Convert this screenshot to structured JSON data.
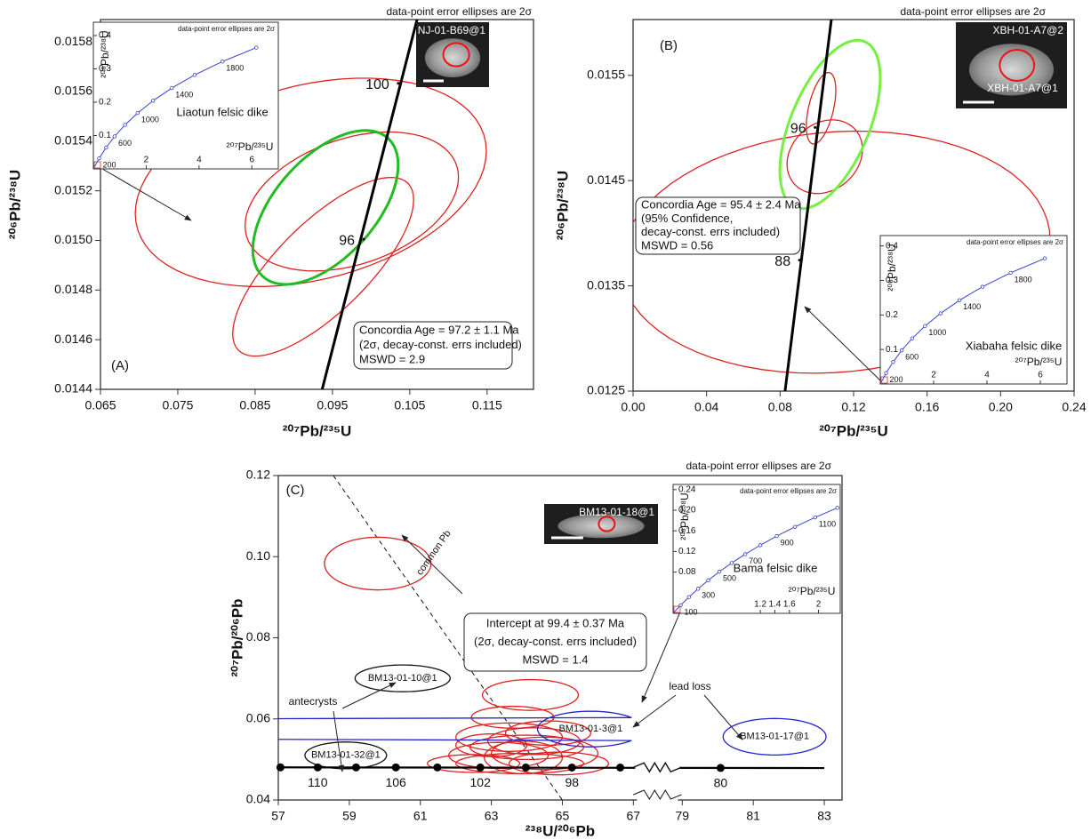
{
  "chart_data": [
    {
      "type": "concordia",
      "note": "data-point error ellipses are 2σ",
      "panel_label": "(A)",
      "x_label": "²⁰⁷Pb/²³⁵U",
      "y_label": "²⁰⁶Pb/²³⁸U",
      "xlim": [
        0.065,
        0.121
      ],
      "xticks": [
        0.065,
        0.075,
        0.085,
        0.095,
        0.105,
        0.115
      ],
      "ylim": [
        0.0144,
        0.01589
      ],
      "yticks": [
        0.0144,
        0.0146,
        0.0148,
        {
          "value": 0.015,
          "label": "0.0150"
        },
        0.0152,
        0.0154,
        0.0156,
        0.0158
      ],
      "concordia": {
        "color": "#000000",
        "x": [
          0.09367,
          0.10594
        ],
        "y": [
          0.0144,
          0.01589
        ]
      },
      "age_points": {
        "x": [
          0.1035,
          0.09904
        ],
        "y": [
          0.015633,
          0.015005
        ],
        "labels": [
          "100",
          "96"
        ]
      },
      "ellipses": [
        {
          "x": 0.0922,
          "y": 0.015234,
          "x_err": 0.0227,
          "y_err": 0.00042,
          "rho": 0.3,
          "color": "#dd2222"
        },
        {
          "x": 0.0975,
          "y": 0.015157,
          "x_err": 0.0138,
          "y_err": 0.00028,
          "rho": 0.35,
          "color": "#dd2222"
        },
        {
          "x": 0.0938,
          "y": 0.014894,
          "x_err": 0.0117,
          "y_err": 0.00036,
          "rho": 0.75,
          "color": "#dd2222"
        },
        {
          "x": 0.0941,
          "y": 0.015133,
          "x_err": 0.0094,
          "y_err": 0.00031,
          "rho": 0.55,
          "color": "#22bb22"
        }
      ],
      "result": [
        "Concordia Age = 97.2 ± 1.1 Ma",
        "(2σ, decay-const. errs included)",
        "MSWD  = 2.9"
      ],
      "images": [
        {
          "label": "NJ-01-B69@1"
        }
      ],
      "inset": {
        "note": "data-point error ellipses are 2σ",
        "label": "Liaotun felsic dike",
        "x_label": "²⁰⁷Pb/²³⁵U",
        "y_label": "²⁰⁶Pb/²³⁸U",
        "xlim": [
          0,
          7
        ],
        "ylim": [
          0,
          0.44
        ],
        "xticks": [
          2,
          4,
          6
        ],
        "yticks": [
          0.1,
          0.2,
          0.3,
          0.4
        ],
        "curve": {
          "color": "#3344cc",
          "x": [
            0.2177,
            0.4828,
            0.8056,
            1.1987,
            1.6775,
            2.2604,
            2.97,
            3.835,
            4.887,
            6.169
          ],
          "y": [
            0.03151,
            0.064,
            0.09754,
            0.1321,
            0.1678,
            0.2046,
            0.2426,
            0.2817,
            0.3221,
            0.3638
          ],
          "labels": [
            "200",
            null,
            "600",
            null,
            "1000",
            null,
            "1400",
            null,
            "1800",
            null
          ]
        }
      }
    },
    {
      "type": "concordia",
      "note": "data-point error ellipses are 2σ",
      "panel_label": "(B)",
      "x_label": "²⁰⁷Pb/²³⁵U",
      "y_label": "²⁰⁶Pb/²³⁸U",
      "xlim": [
        0,
        0.24
      ],
      "xticks": [
        {
          "value": 0,
          "label": "0.00"
        },
        0.04,
        0.08,
        0.12,
        0.16,
        {
          "value": 0.2,
          "label": "0.20"
        },
        0.24
      ],
      "ylim": [
        0.0125,
        0.01603
      ],
      "yticks": [
        0.0125,
        0.0135,
        0.0145,
        0.0155
      ],
      "concordia": {
        "color": "#000000",
        "x": [
          0.0827,
          0.1079
        ],
        "y": [
          0.0125,
          0.01603
        ]
      },
      "age_points": {
        "x": [
          0.09904,
          0.09053
        ],
        "y": [
          0.015005,
          0.013745
        ],
        "labels": [
          "96",
          "88"
        ]
      },
      "ellipses": [
        {
          "x": 0.11,
          "y": 0.01382,
          "x_err": 0.117,
          "y_err": 0.00115,
          "rho": 0.1,
          "color": "#dd2222"
        },
        {
          "x": 0.1023,
          "y": 0.015187,
          "x_err": 0.008,
          "y_err": 0.00034,
          "rho": 0.5,
          "color": "#dd2222"
        },
        {
          "x": 0.1043,
          "y": 0.014727,
          "x_err": 0.0205,
          "y_err": 0.00035,
          "rho": 0.2,
          "color": "#dd2222"
        },
        {
          "x": 0.1072,
          "y": 0.015034,
          "x_err": 0.0273,
          "y_err": 0.0008,
          "rho": 0.55,
          "color": "#77ee44"
        }
      ],
      "result": [
        "Concordia Age = 95.4 ± 2.4 Ma",
        " (95% Confidence,",
        "decay-const. errs included)",
        "MSWD = 0.56"
      ],
      "images": [
        {
          "label": "XBH-01-A7@2"
        },
        {
          "label": "XBH-01-A7@1"
        }
      ],
      "inset": {
        "note": "data-point error ellipses are 2σ",
        "label": "Xiabaha felsic dike",
        "x_label": "²⁰⁷Pb/²³⁵U",
        "y_label": "²⁰⁶Pb/²³⁸U",
        "xlim": [
          0,
          7
        ],
        "ylim": [
          0,
          0.43
        ],
        "xticks": [
          2,
          4,
          6
        ],
        "yticks": [
          0.1,
          0.2,
          0.3,
          0.4
        ],
        "curve": {
          "color": "#3344cc",
          "x": [
            0.2177,
            0.4828,
            0.8056,
            1.1987,
            1.6775,
            2.2604,
            2.97,
            3.835,
            4.887,
            6.169
          ],
          "y": [
            0.03151,
            0.064,
            0.09754,
            0.1321,
            0.1678,
            0.2046,
            0.2426,
            0.2817,
            0.3221,
            0.3638
          ],
          "labels": [
            "200",
            null,
            "600",
            null,
            "1000",
            null,
            "1400",
            null,
            "1800",
            null
          ]
        }
      }
    },
    {
      "type": "tera-wasserburg",
      "note": "data-point error ellipses are 2σ",
      "panel_label": "(C)",
      "x_label": "²³⁸U/²⁰⁶Pb",
      "y_label": "²⁰⁷Pb/²⁰⁶Pb",
      "xlim": [
        57,
        83.5
      ],
      "xbreak": [
        67,
        79
      ],
      "xticks": [
        57,
        59,
        61,
        63,
        65,
        67,
        79,
        81,
        83
      ],
      "ylim": [
        0.04,
        0.12
      ],
      "yticks": [
        0.04,
        0.06,
        0.08,
        {
          "value": 0.1,
          "label": "0.10"
        },
        0.12
      ],
      "concordia": {
        "color": "#000000",
        "x": [
          57,
          83
        ],
        "y": [
          0.04805,
          0.04788
        ]
      },
      "age_points": {
        "x": [
          57.06,
          58.11,
          59.19,
          60.31,
          61.48,
          62.69,
          63.97,
          65.27,
          66.63,
          80.08
        ],
        "y": [
          0.04805,
          0.04804,
          0.04804,
          0.04803,
          0.04803,
          0.04802,
          0.04802,
          0.04801,
          0.048,
          0.04791
        ],
        "labels": [
          null,
          "110",
          null,
          "106",
          null,
          "102",
          null,
          "98",
          null,
          "80"
        ]
      },
      "reference_line": {
        "label": "common Pb",
        "x": [
          58.55,
          65.0
        ],
        "y": [
          0.12,
          0.04
        ]
      },
      "ellipses": [
        {
          "x": 59.8,
          "y": 0.0983,
          "x_err": 1.5,
          "y_err": 0.0065,
          "rho": 0,
          "color": "#dd2222"
        },
        {
          "x": 64.1,
          "y": 0.0659,
          "x_err": 1.35,
          "y_err": 0.0038,
          "rho": 0,
          "color": "#dd2222"
        },
        {
          "x": 63.6,
          "y": 0.0604,
          "x_err": 1.16,
          "y_err": 0.0027,
          "rho": 0,
          "color": "#dd2222"
        },
        {
          "x": 63.5,
          "y": 0.0555,
          "x_err": 1.5,
          "y_err": 0.0035,
          "rho": 0,
          "color": "#dd2222"
        },
        {
          "x": 64.0,
          "y": 0.053,
          "x_err": 1.6,
          "y_err": 0.003,
          "rho": 0,
          "color": "#dd2222"
        },
        {
          "x": 63.2,
          "y": 0.051,
          "x_err": 1.4,
          "y_err": 0.0032,
          "rho": 0,
          "color": "#dd2222"
        },
        {
          "x": 64.5,
          "y": 0.0515,
          "x_err": 1.5,
          "y_err": 0.004,
          "rho": 0,
          "color": "#dd2222"
        },
        {
          "x": 63.8,
          "y": 0.049,
          "x_err": 1.8,
          "y_err": 0.0025,
          "rho": 0,
          "color": "#dd2222"
        },
        {
          "x": 64.9,
          "y": 0.049,
          "x_err": 1.4,
          "y_err": 0.0028,
          "rho": 0,
          "color": "#dd2222"
        },
        {
          "x": 63.0,
          "y": 0.0535,
          "x_err": 1.0,
          "y_err": 0.0028,
          "rho": 0,
          "color": "#dd2222"
        },
        {
          "x": 64.2,
          "y": 0.0545,
          "x_err": 1.3,
          "y_err": 0.0033,
          "rho": 0,
          "color": "#dd2222"
        },
        {
          "x": 62.5,
          "y": 0.049,
          "x_err": 1.3,
          "y_err": 0.0022,
          "rho": 0,
          "color": "#dd2222"
        },
        {
          "x": 64.6,
          "y": 0.0565,
          "x_err": 1.2,
          "y_err": 0.003,
          "rho": 0,
          "color": "#dd2222"
        },
        {
          "x": 63.9,
          "y": 0.0505,
          "x_err": 1.1,
          "y_err": 0.004,
          "rho": 0,
          "color": "#dd2222"
        },
        {
          "x": 60.5,
          "y": 0.07,
          "x_err": 1.34,
          "y_err": 0.0033,
          "rho": 0,
          "color": "#111111",
          "label": "BM13-01-10@1"
        },
        {
          "x": 58.9,
          "y": 0.051,
          "x_err": 1.15,
          "y_err": 0.0033,
          "rho": 0,
          "color": "#111111",
          "label": "BM13-01-32@1"
        },
        {
          "x": 65.8,
          "y": 0.0575,
          "x_err": 1.5,
          "y_err": 0.0044,
          "rho": 0,
          "color": "#2222cc",
          "label": "BM13-01-3@1"
        },
        {
          "x": 81.6,
          "y": 0.0556,
          "x_err": 1.45,
          "y_err": 0.0045,
          "rho": 0,
          "color": "#2222cc",
          "label": "BM13-01-17@1"
        }
      ],
      "result": [
        "Intercept at 99.4 ± 0.37 Ma",
        "(2σ, decay-const. errs included)",
        "MSWD = 1.4"
      ],
      "images": [
        {
          "label": "BM13-01-18@1"
        }
      ],
      "annotations": [
        "antecrysts",
        "lead loss"
      ],
      "inset": {
        "note": "data-point error ellipses are 2σ",
        "label": "Bama felsic dike",
        "x_label": "²⁰⁷Pb/²³⁵U",
        "y_label": "²⁰⁶Pb/²³⁸U",
        "xlim": [
          0,
          2.3
        ],
        "ylim": [
          0,
          0.25
        ],
        "xticks": [
          1.2,
          1.4,
          1.6,
          2
        ],
        "yticks": [
          0.08,
          0.12,
          0.16,
          {
            "value": 0.2,
            "label": "0.20"
          },
          0.24
        ],
        "curve": {
          "color": "#3344cc",
          "x": [
            0.1035,
            0.2177,
            0.3437,
            0.4828,
            0.6362,
            0.8056,
            0.9925,
            1.1987,
            1.4263,
            1.6775,
            1.9545,
            2.2604
          ],
          "y": [
            0.01563,
            0.03151,
            0.04764,
            0.064,
            0.08065,
            0.09754,
            0.1147,
            0.1321,
            0.1498,
            0.1678,
            0.1861,
            0.2046
          ],
          "labels": [
            "100",
            null,
            "300",
            null,
            "500",
            null,
            "700",
            null,
            "900",
            null,
            "1100",
            null
          ]
        }
      }
    }
  ]
}
